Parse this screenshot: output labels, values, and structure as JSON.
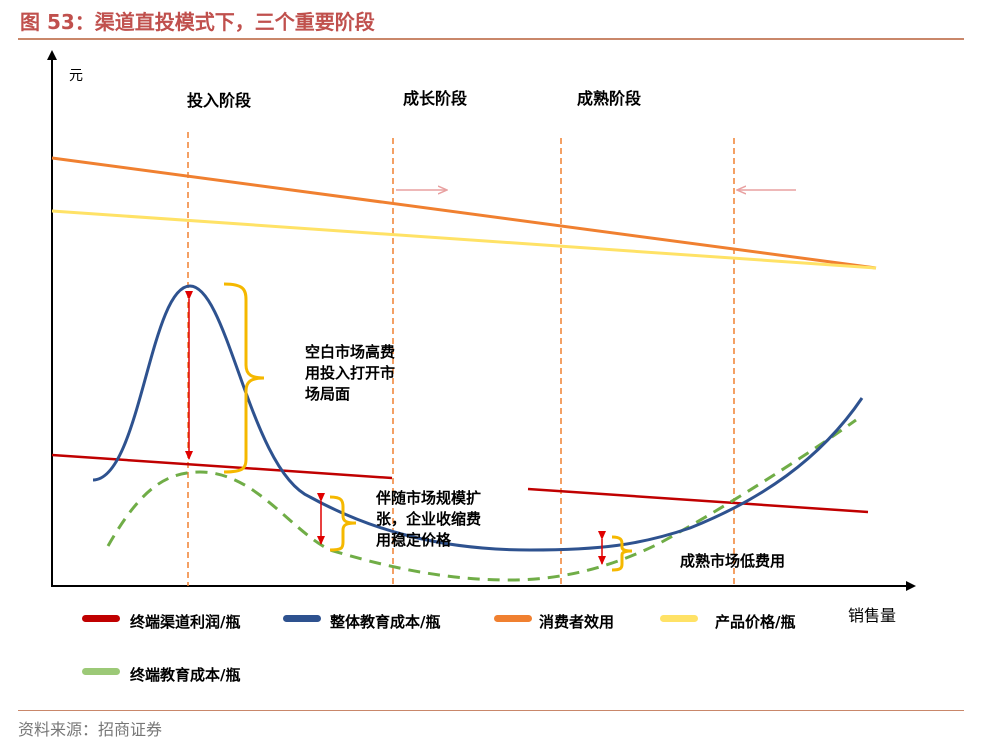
{
  "figure": {
    "title": "图 53：渠道直投模式下，三个重要阶段",
    "source": "资料来源：招商证券"
  },
  "chart_data": {
    "type": "line",
    "conceptual": true,
    "ylabel": "元",
    "xlabel": "销售量",
    "stages": [
      "投入阶段",
      "成长阶段",
      "成熟阶段"
    ],
    "annotations": [
      [
        "空白市场高费",
        "用投入打开市",
        "场局面"
      ],
      [
        "伴随市场规模扩",
        "张，企业收缩费",
        "用稳定价格"
      ],
      [
        "成熟市场低费用"
      ]
    ],
    "series": [
      {
        "name": "终端渠道利润/瓶",
        "color": "#c00000"
      },
      {
        "name": "整体教育成本/瓶",
        "color": "#2e528f"
      },
      {
        "name": "消费者效用",
        "color": "#f08030"
      },
      {
        "name": "产品价格/瓶",
        "color": "#ffe266"
      },
      {
        "name": "终端教育成本/瓶",
        "color": "#70ad47"
      }
    ],
    "colors": {
      "guide": "#f08030",
      "shift_arrow": "#e8a0a0",
      "bracket": "#f5b800",
      "marker": "#e00000",
      "axis": "#000000"
    }
  }
}
